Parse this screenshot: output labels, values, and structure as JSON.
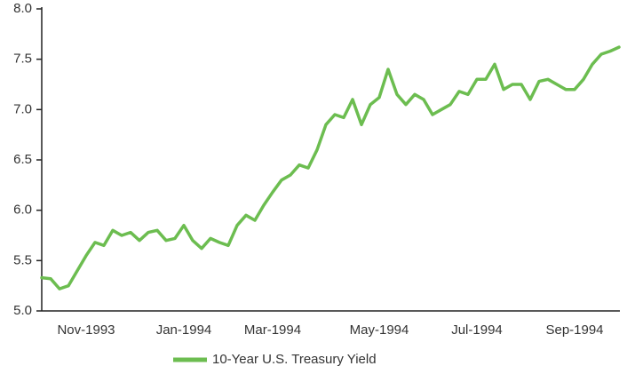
{
  "chart_data": {
    "type": "line",
    "categories": [
      null,
      null,
      null,
      null,
      null,
      "Nov-1993",
      null,
      null,
      null,
      null,
      null,
      null,
      null,
      null,
      null,
      null,
      "Jan-1994",
      null,
      null,
      null,
      null,
      null,
      null,
      null,
      null,
      null,
      "Mar-1994",
      null,
      null,
      null,
      null,
      null,
      null,
      null,
      null,
      null,
      null,
      null,
      "May-1994",
      null,
      null,
      null,
      null,
      null,
      null,
      null,
      null,
      null,
      null,
      "Jul-1994",
      null,
      null,
      null,
      null,
      null,
      null,
      null,
      null,
      null,
      null,
      "Sep-1994",
      null,
      null,
      null,
      null,
      null
    ],
    "series": [
      {
        "name": "10-Year U.S. Treasury Yield",
        "color": "#6cbd50",
        "values": [
          5.33,
          5.32,
          5.22,
          5.25,
          5.4,
          5.55,
          5.68,
          5.65,
          5.8,
          5.75,
          5.78,
          5.7,
          5.78,
          5.8,
          5.7,
          5.72,
          5.85,
          5.7,
          5.62,
          5.72,
          5.68,
          5.65,
          5.85,
          5.95,
          5.9,
          6.05,
          6.18,
          6.3,
          6.35,
          6.45,
          6.42,
          6.6,
          6.85,
          6.95,
          6.92,
          7.1,
          6.85,
          7.05,
          7.12,
          7.4,
          7.15,
          7.05,
          7.15,
          7.1,
          6.95,
          7.0,
          7.05,
          7.18,
          7.15,
          7.3,
          7.3,
          7.45,
          7.2,
          7.25,
          7.25,
          7.1,
          7.28,
          7.3,
          7.25,
          7.2,
          7.2,
          7.3,
          7.45,
          7.55,
          7.58,
          7.62
        ]
      }
    ],
    "ylim": [
      5,
      8
    ],
    "yticks": [
      {
        "value": 5,
        "label": "5.0"
      },
      {
        "value": 5.5,
        "label": "5.5"
      },
      {
        "value": 6,
        "label": "6.0"
      },
      {
        "value": 6.5,
        "label": "6.5"
      },
      {
        "value": 7,
        "label": "7.0"
      },
      {
        "value": 7.5,
        "label": "7.5"
      },
      {
        "value": 8,
        "label": "8.0"
      }
    ],
    "grid": false,
    "legend": "bottom"
  }
}
